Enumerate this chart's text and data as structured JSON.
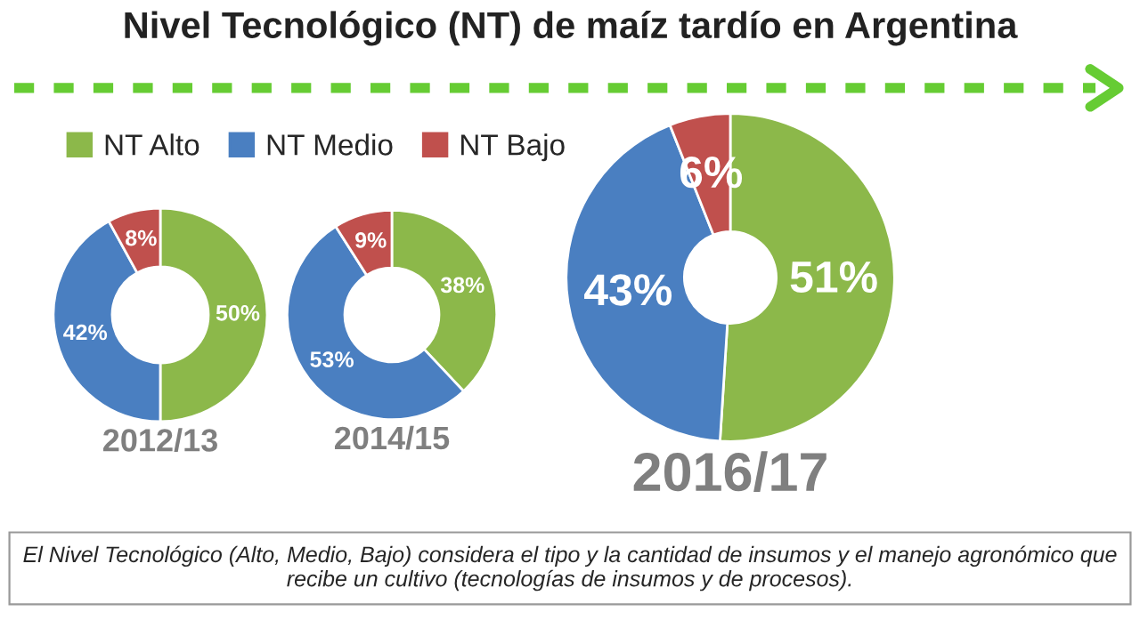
{
  "chart_data": [
    {
      "type": "donut",
      "title": "Nivel Tecnológico (NT) de maíz tardío en Argentina",
      "xlabel": "2012/13",
      "categories": [
        "NT Alto",
        "NT Medio",
        "NT Bajo"
      ],
      "values": [
        50,
        42,
        8
      ],
      "colors": [
        "#8cb84a",
        "#4a7fc1",
        "#c0504d"
      ],
      "value_labels": [
        "50%",
        "42%",
        "8%"
      ],
      "legend": "top right",
      "annotations": [
        "El Nivel Tecnológico (Alto, Medio, Bajo) considera el tipo y la cantidad de insumos y el manejo agronómico que recibe un cultivo (tecnologías de insumos y de procesos)."
      ]
    },
    {
      "type": "donut",
      "xlabel": "2014/15",
      "values": [
        38,
        53,
        9
      ],
      "colors": [
        "#8cb84a",
        "#4a7fc1",
        "#c0504d"
      ],
      "value_labels": [
        "38%",
        "53%",
        "9%"
      ]
    },
    {
      "type": "donut",
      "xlabel": "2016/17",
      "values": [
        51,
        43,
        6
      ],
      "colors": [
        "#8cb84a",
        "#4a7fc1",
        "#c0504d"
      ],
      "value_labels": [
        "51%",
        "43%",
        "6%"
      ]
    }
  ]
}
